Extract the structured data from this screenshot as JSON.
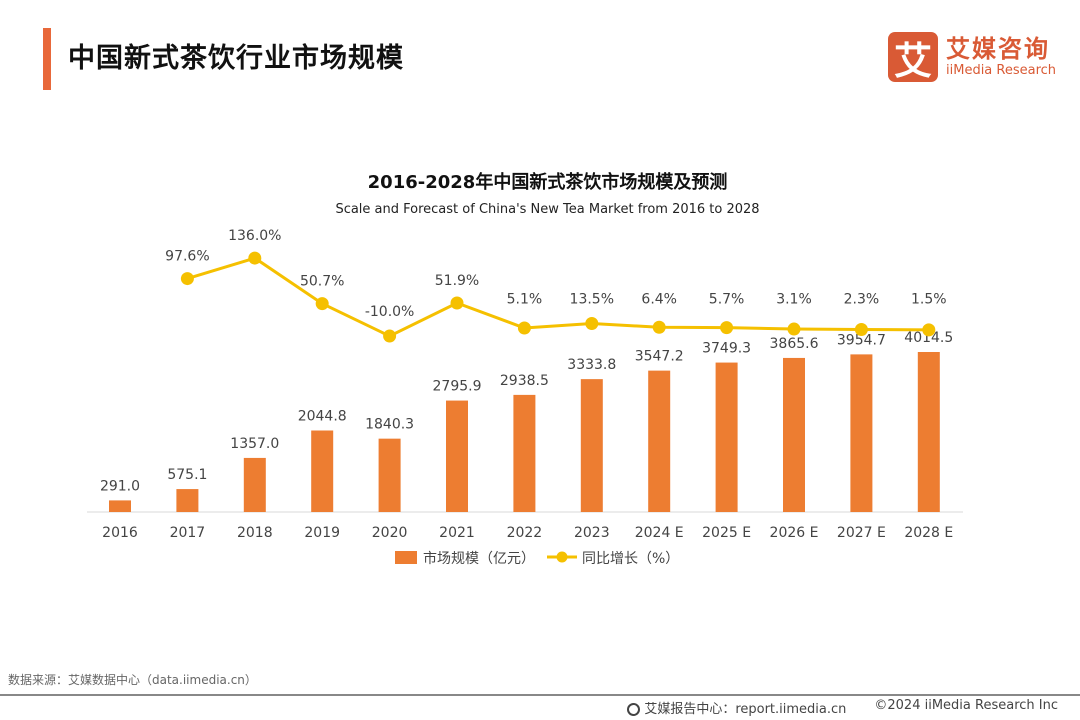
{
  "header": {
    "title": "中国新式茶饮行业市场规模",
    "logo_mark": "艾",
    "logo_cn": "艾媒咨询",
    "logo_en": "iiMedia Research"
  },
  "colors": {
    "accent": "#e8683a",
    "bar": "#ed7d31",
    "line": "#f5c000"
  },
  "chart_data": {
    "type": "bar+line",
    "title": "2016-2028年中国新式茶饮市场规模及预测",
    "subtitle": "Scale and Forecast of China's New Tea Market from 2016 to 2028",
    "categories": [
      "2016",
      "2017",
      "2018",
      "2019",
      "2020",
      "2021",
      "2022",
      "2023",
      "2024 E",
      "2025 E",
      "2026 E",
      "2027 E",
      "2028 E"
    ],
    "series": [
      {
        "name": "市场规模（亿元）",
        "type": "bar",
        "values": [
          291.0,
          575.1,
          1357.0,
          2044.8,
          1840.3,
          2795.9,
          2938.5,
          3333.8,
          3547.2,
          3749.3,
          3865.6,
          3954.7,
          4014.5
        ],
        "labels": [
          "291.0",
          "575.1",
          "1357.0",
          "2044.8",
          "1840.3",
          "2795.9",
          "2938.5",
          "3333.8",
          "3547.2",
          "3749.3",
          "3865.6",
          "3954.7",
          "4014.5"
        ]
      },
      {
        "name": "同比增长（%）",
        "type": "line",
        "values": [
          null,
          97.6,
          136.0,
          50.7,
          -10.0,
          51.9,
          5.1,
          13.5,
          6.4,
          5.7,
          3.1,
          2.3,
          1.5
        ],
        "labels": [
          "",
          "97.6%",
          "136.0%",
          "50.7%",
          "-10.0%",
          "51.9%",
          "5.1%",
          "13.5%",
          "6.4%",
          "5.7%",
          "3.1%",
          "2.3%",
          "1.5%"
        ]
      }
    ],
    "legend": "bottom",
    "grid": false
  },
  "footer": {
    "source": "数据来源：艾媒数据中心（data.iimedia.cn）",
    "report": "艾媒报告中心：report.iimedia.cn",
    "copyright": "©2024  iiMedia Research  Inc"
  }
}
